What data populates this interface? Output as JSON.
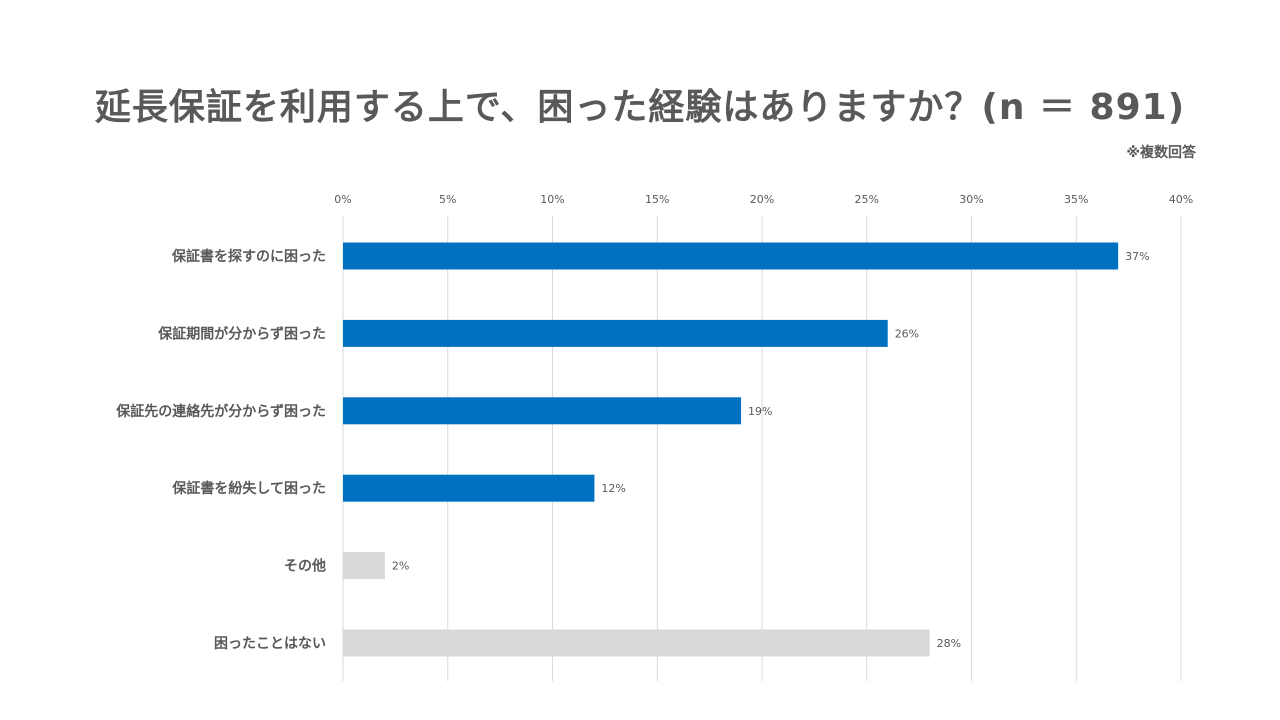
{
  "title": "延長保証を利用する上で、困った経験はありますか？(n ＝ 891)",
  "note": "※複数回答",
  "colors": {
    "primary": "#0070c0",
    "secondary": "#d9d9d9",
    "grid": "#d9d9d9",
    "text": "#595959"
  },
  "chart_data": {
    "type": "bar",
    "orientation": "horizontal",
    "title": "延長保証を利用する上で、困った経験はありますか？(n ＝ 891)",
    "xlim": [
      0,
      40
    ],
    "x_ticks": [
      "0%",
      "5%",
      "10%",
      "15%",
      "20%",
      "25%",
      "30%",
      "35%",
      "40%"
    ],
    "x_tick_values": [
      0,
      5,
      10,
      15,
      20,
      25,
      30,
      35,
      40
    ],
    "grid": true,
    "categories": [
      "保証書を探すのに困った",
      "保証期間が分からず困った",
      "保証先の連絡先が分からず困った",
      "保証書を紛失して困った",
      "その他",
      "困ったことはない"
    ],
    "values": [
      37,
      26,
      19,
      12,
      2,
      28
    ],
    "labels": [
      "37%",
      "26%",
      "19%",
      "12%",
      "2%",
      "28%"
    ],
    "bar_colors": [
      "primary",
      "primary",
      "primary",
      "primary",
      "secondary",
      "secondary"
    ]
  }
}
